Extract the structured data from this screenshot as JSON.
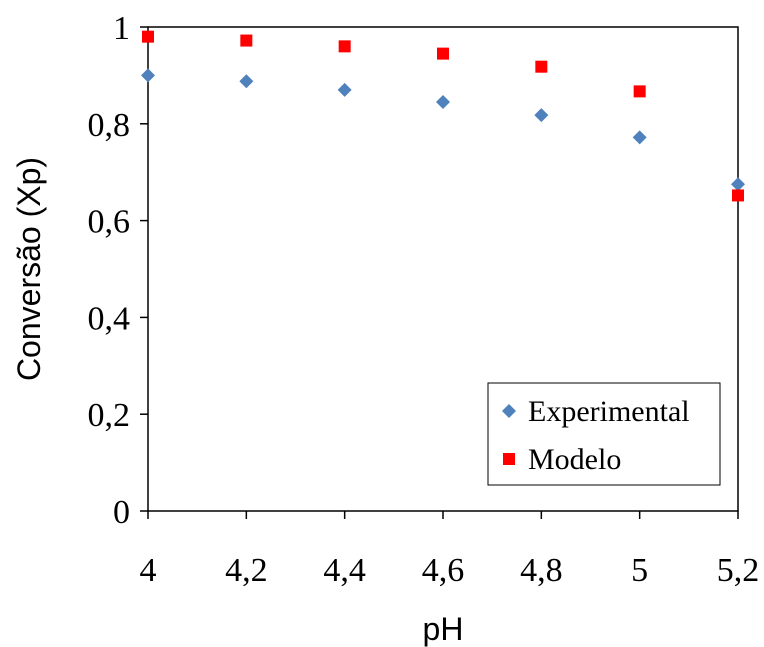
{
  "chart_data": {
    "type": "scatter",
    "title": "",
    "xlabel": "pH",
    "ylabel": "Conversão (Xp)",
    "xlim": [
      4,
      5.2
    ],
    "ylim": [
      0,
      1
    ],
    "x_ticks": [
      "4",
      "4,2",
      "4,4",
      "4,6",
      "4,8",
      "5",
      "5,2"
    ],
    "y_ticks": [
      "0",
      "0,2",
      "0,4",
      "0,6",
      "0,8",
      "1"
    ],
    "grid": false,
    "legend_position": "bottom-right",
    "series": [
      {
        "name": "Experimental",
        "marker": "diamond",
        "color": "#4F81BD",
        "x": [
          4.0,
          4.2,
          4.4,
          4.6,
          4.8,
          5.0,
          5.2
        ],
        "y": [
          0.9,
          0.888,
          0.87,
          0.845,
          0.818,
          0.772,
          0.675
        ]
      },
      {
        "name": "Modelo",
        "marker": "square",
        "color": "#FF0000",
        "x": [
          4.0,
          4.2,
          4.4,
          4.6,
          4.8,
          5.0,
          5.2
        ],
        "y": [
          0.98,
          0.972,
          0.96,
          0.945,
          0.918,
          0.867,
          0.652
        ]
      }
    ]
  }
}
